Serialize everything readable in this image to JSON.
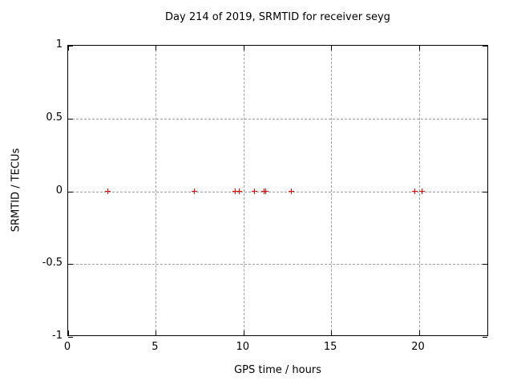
{
  "chart_data": {
    "type": "scatter",
    "title": "Day 214 of 2019, SRMTID for receiver seyg",
    "xlabel": "GPS time / hours",
    "ylabel": "SRMTID / TECUs",
    "xlim": [
      0,
      24
    ],
    "ylim": [
      -1,
      1
    ],
    "xticks": [
      {
        "value": 0,
        "label": "0"
      },
      {
        "value": 5,
        "label": "5"
      },
      {
        "value": 10,
        "label": "10"
      },
      {
        "value": 15,
        "label": "15"
      },
      {
        "value": 20,
        "label": "20"
      }
    ],
    "yticks": [
      {
        "value": 1,
        "label": "1"
      },
      {
        "value": 0.5,
        "label": "0.5"
      },
      {
        "value": 0,
        "label": "0"
      },
      {
        "value": -0.5,
        "label": "-0.5"
      },
      {
        "value": -1,
        "label": "-1"
      }
    ],
    "grid": true,
    "legend": false,
    "marker": "plus",
    "points": [
      {
        "x": 2.24,
        "y": 0
      },
      {
        "x": 7.18,
        "y": 0
      },
      {
        "x": 9.51,
        "y": 0
      },
      {
        "x": 9.74,
        "y": 0
      },
      {
        "x": 10.63,
        "y": 0
      },
      {
        "x": 11.17,
        "y": 0
      },
      {
        "x": 11.26,
        "y": 0
      },
      {
        "x": 12.75,
        "y": 0
      },
      {
        "x": 19.79,
        "y": 0
      },
      {
        "x": 20.2,
        "y": 0
      }
    ],
    "colors": {
      "marker": "#ff0000",
      "grid": "#9e9e9e",
      "axis": "#000000",
      "background": "#ffffff",
      "text": "#000000"
    }
  }
}
